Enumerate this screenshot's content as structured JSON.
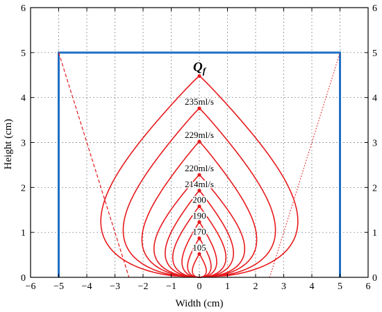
{
  "chart_data": {
    "type": "line",
    "title": "",
    "xlabel": "Width (cm)",
    "ylabel": "Height (cm)",
    "xlim": [
      -6,
      6
    ],
    "ylim": [
      0,
      6
    ],
    "x_ticks": [
      -6,
      -5,
      -4,
      -3,
      -2,
      -1,
      0,
      1,
      2,
      3,
      4,
      5,
      6
    ],
    "y_ticks": [
      0,
      1,
      2,
      3,
      4,
      5,
      6
    ],
    "grid": true,
    "mirror_right_axis": true,
    "colors": {
      "box": "#1f6fc4",
      "curves": "#e8191c",
      "grid": "#777777",
      "axis": "#000000"
    },
    "container": {
      "x": [
        -5,
        -5,
        5,
        5
      ],
      "y": [
        0,
        5,
        5,
        0
      ]
    },
    "guide_lines": [
      {
        "style": "dashed",
        "from": [
          -5,
          5
        ],
        "to": [
          -2.5,
          0
        ]
      },
      {
        "style": "dotted",
        "from": [
          2.5,
          0
        ],
        "to": [
          5,
          5
        ]
      }
    ],
    "series": [
      {
        "name": "105",
        "height": 0.52,
        "half_width": 0.25
      },
      {
        "name": "170",
        "height": 0.87,
        "half_width": 0.42
      },
      {
        "name": "190",
        "height": 1.23,
        "half_width": 0.62
      },
      {
        "name": "200",
        "height": 1.58,
        "half_width": 0.95
      },
      {
        "name": "214ml/s",
        "height": 1.93,
        "half_width": 1.22
      },
      {
        "name": "220ml/s",
        "height": 2.28,
        "half_width": 1.62
      },
      {
        "name": "229ml/s",
        "height": 3.02,
        "half_width": 2.05
      },
      {
        "name": "235ml/s",
        "height": 3.76,
        "half_width": 2.72
      },
      {
        "name": "Qf",
        "height": 4.48,
        "half_width": 3.52
      }
    ]
  }
}
